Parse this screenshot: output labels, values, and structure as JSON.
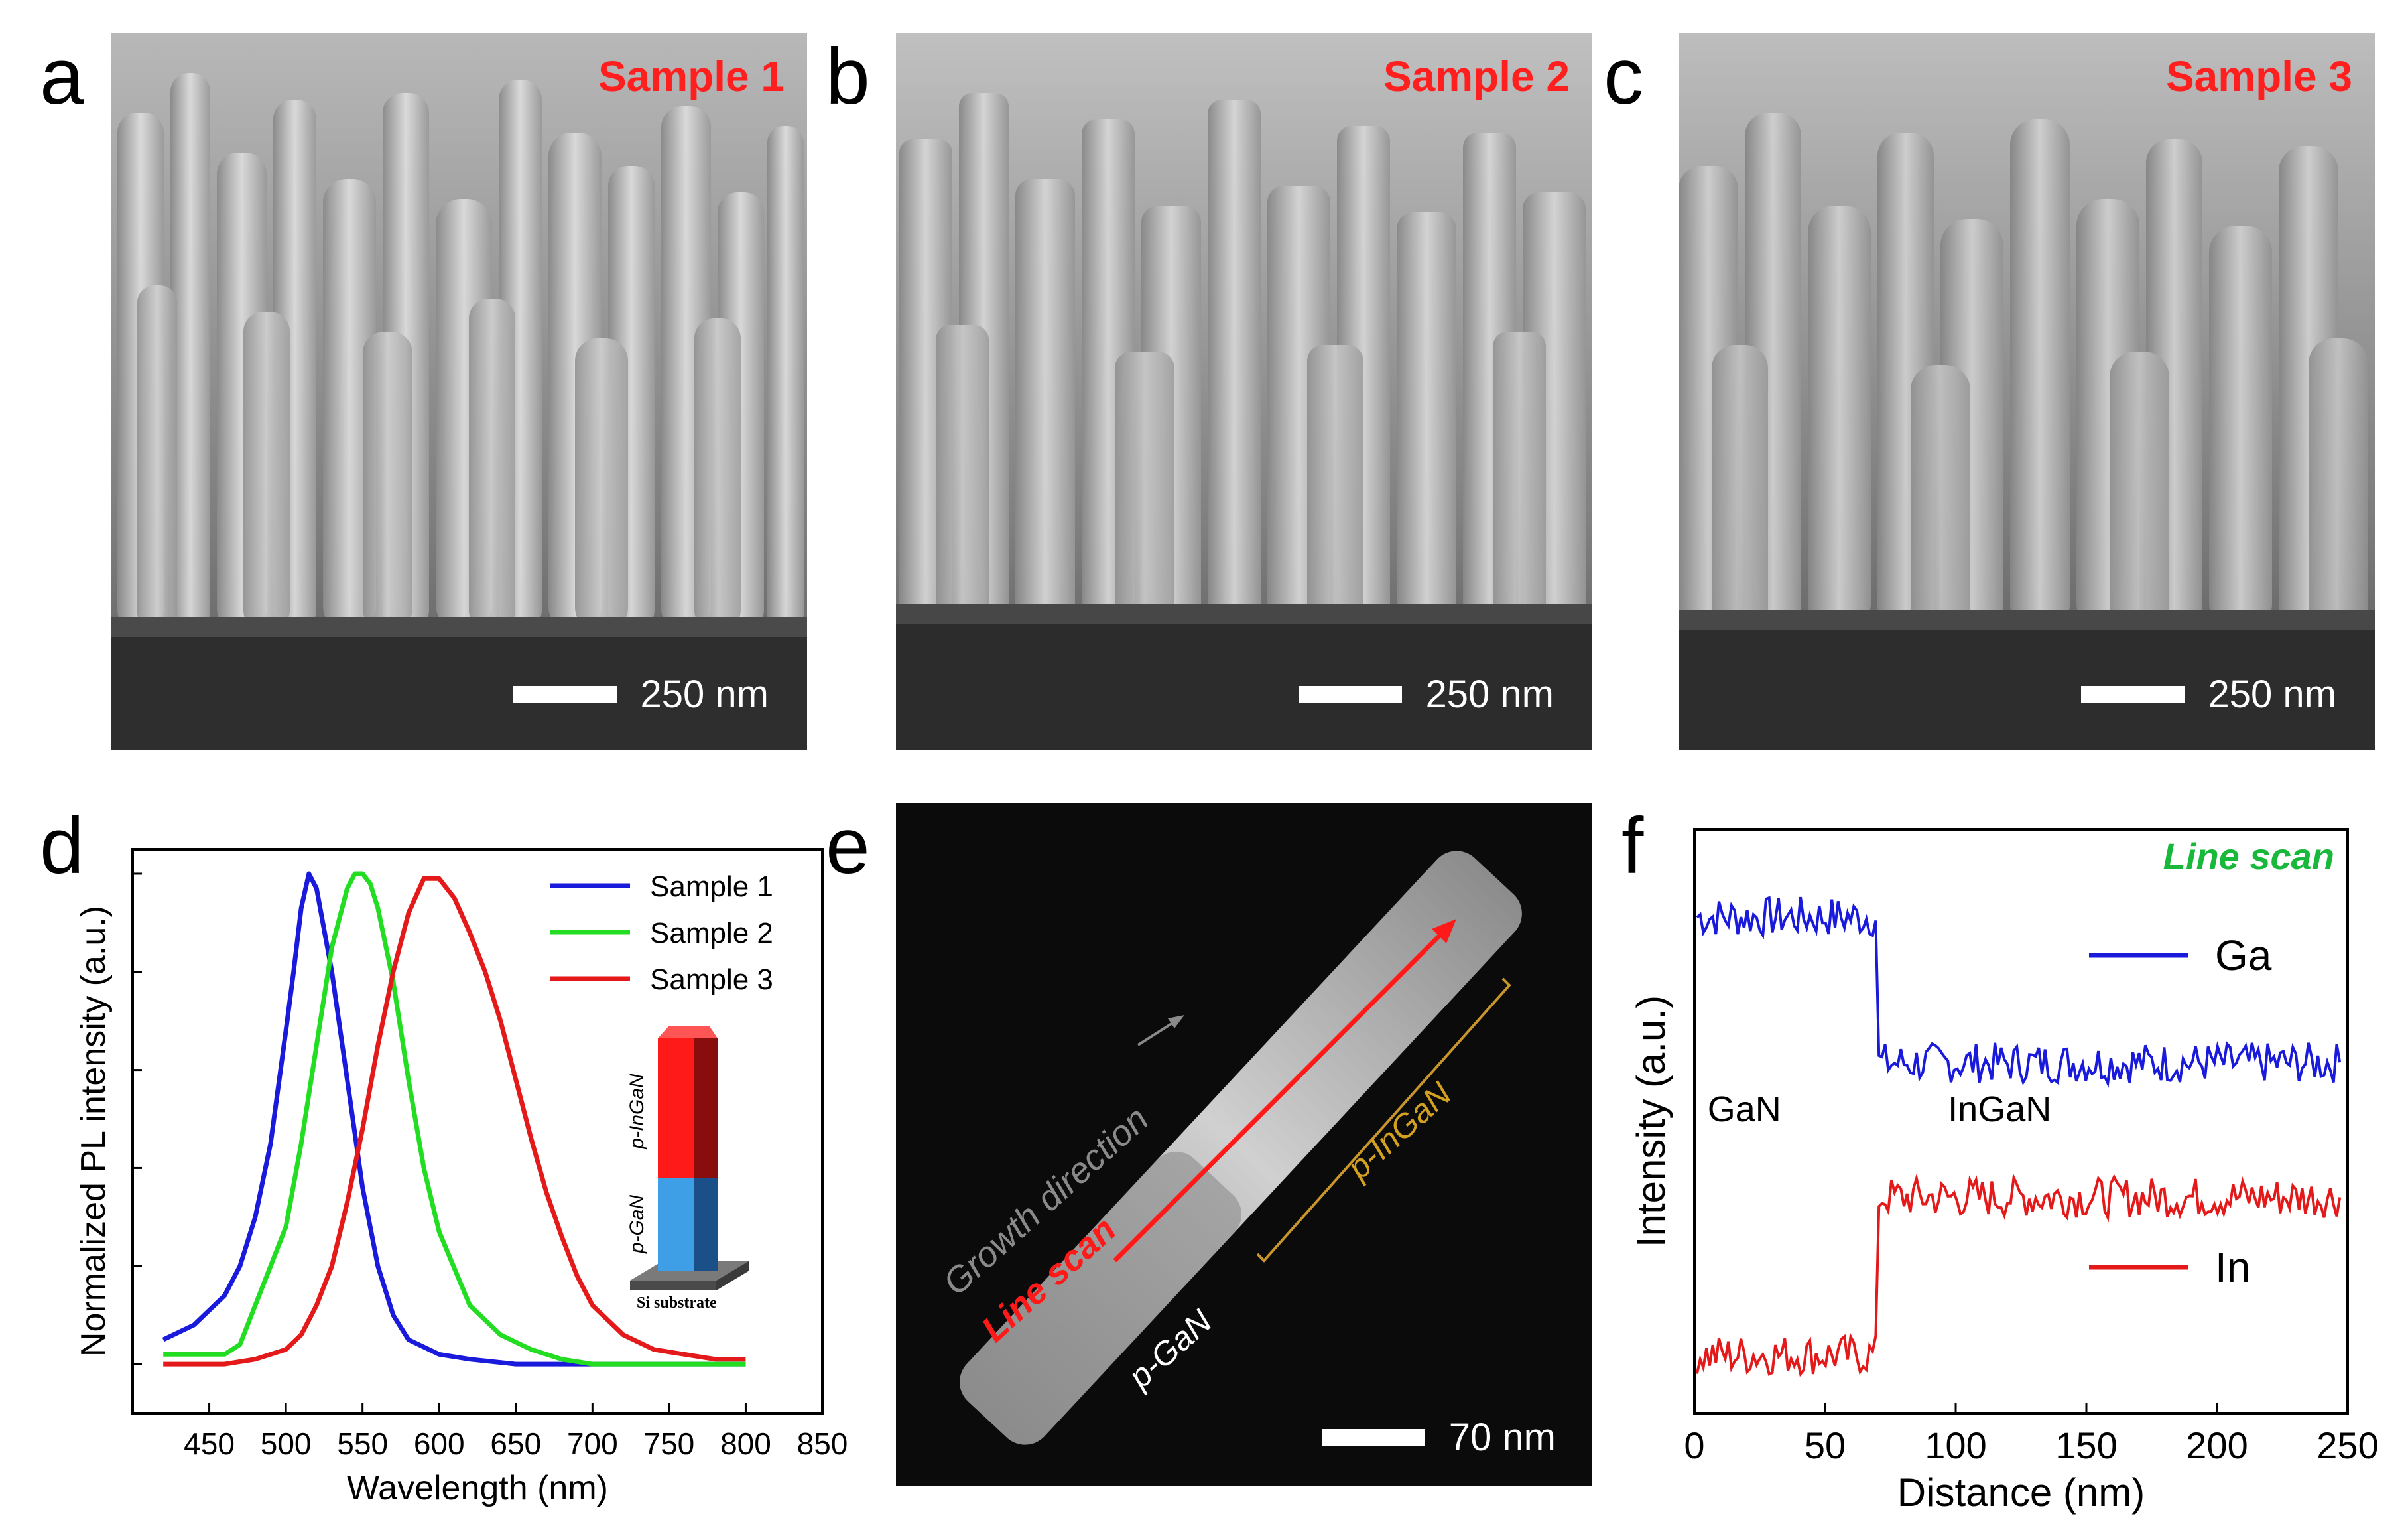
{
  "panels": {
    "a": {
      "letter": "a",
      "sample": "Sample 1",
      "scale": "250 nm"
    },
    "b": {
      "letter": "b",
      "sample": "Sample 2",
      "scale": "250 nm"
    },
    "c": {
      "letter": "c",
      "sample": "Sample 3",
      "scale": "250 nm"
    },
    "d": {
      "letter": "d"
    },
    "e": {
      "letter": "e",
      "growth": "Growth direction",
      "line_scan": "Line scan",
      "p_ingan": "p-InGaN",
      "p_gan": "p-GaN",
      "scale": "70 nm"
    },
    "f": {
      "letter": "f"
    }
  },
  "inset": {
    "top": "p-InGaN",
    "bottom": "p-GaN",
    "substrate": "Si substrate"
  },
  "colors": {
    "sample1": "#1a1adc",
    "sample2": "#22dd22",
    "sample3": "#e41a1a",
    "ga": "#1a1adc",
    "in": "#e41a1a",
    "title_red": "#ff1f1f",
    "linescan_green": "#18b83a"
  },
  "chart_data": [
    {
      "type": "line",
      "panel": "d",
      "xlabel": "Wavelength (nm)",
      "ylabel": "Normalized PL intensity (a.u.)",
      "xlim": [
        400,
        850
      ],
      "ylim": [
        -0.1,
        1.05
      ],
      "xticks": [
        450,
        500,
        550,
        600,
        650,
        700,
        750,
        800,
        850
      ],
      "series": [
        {
          "name": "Sample 1",
          "peak": 515,
          "x": [
            420,
            440,
            460,
            470,
            480,
            490,
            500,
            505,
            510,
            515,
            520,
            530,
            540,
            550,
            560,
            570,
            580,
            600,
            620,
            650,
            700,
            800
          ],
          "values": [
            0.05,
            0.08,
            0.14,
            0.2,
            0.3,
            0.45,
            0.68,
            0.8,
            0.93,
            1.0,
            0.97,
            0.8,
            0.58,
            0.36,
            0.2,
            0.1,
            0.05,
            0.02,
            0.01,
            0.0,
            0.0,
            0.0
          ]
        },
        {
          "name": "Sample 2",
          "peak": 550,
          "x": [
            420,
            460,
            470,
            480,
            490,
            500,
            510,
            520,
            530,
            540,
            545,
            550,
            555,
            560,
            570,
            580,
            590,
            600,
            620,
            640,
            660,
            680,
            700,
            750,
            800
          ],
          "values": [
            0.02,
            0.02,
            0.04,
            0.12,
            0.2,
            0.28,
            0.45,
            0.65,
            0.85,
            0.97,
            1.0,
            1.0,
            0.98,
            0.93,
            0.78,
            0.58,
            0.4,
            0.27,
            0.12,
            0.06,
            0.03,
            0.01,
            0.0,
            0.0,
            0.0
          ]
        },
        {
          "name": "Sample 3",
          "peak": 593,
          "x": [
            420,
            460,
            480,
            500,
            510,
            520,
            530,
            540,
            550,
            560,
            570,
            580,
            590,
            600,
            610,
            620,
            630,
            640,
            650,
            660,
            670,
            680,
            690,
            700,
            720,
            740,
            760,
            780,
            800
          ],
          "values": [
            0.0,
            0.0,
            0.01,
            0.03,
            0.06,
            0.12,
            0.2,
            0.33,
            0.48,
            0.65,
            0.8,
            0.92,
            0.99,
            0.99,
            0.95,
            0.88,
            0.8,
            0.7,
            0.58,
            0.46,
            0.35,
            0.26,
            0.18,
            0.12,
            0.06,
            0.03,
            0.02,
            0.01,
            0.01
          ]
        }
      ]
    },
    {
      "type": "line",
      "panel": "f",
      "title": "Line scan",
      "xlabel": "Distance (nm)",
      "ylabel": "Intensity (a.u.)",
      "xlim": [
        0,
        250
      ],
      "xticks": [
        0,
        50,
        100,
        150,
        200,
        250
      ],
      "regions": [
        "GaN",
        "InGaN"
      ],
      "interface": 70,
      "series": [
        {
          "name": "Ga",
          "low_region_level": 0.85,
          "high_region_level": 0.6
        },
        {
          "name": "In",
          "low_region_level": 0.1,
          "high_region_level": 0.37
        }
      ]
    }
  ]
}
